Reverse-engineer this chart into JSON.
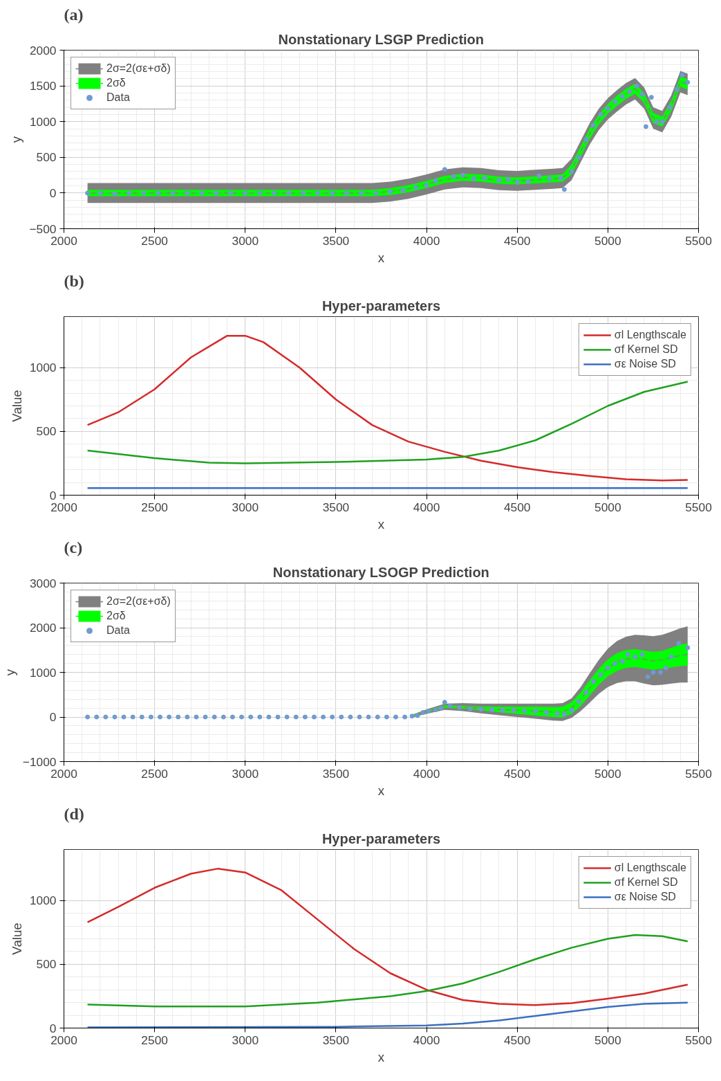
{
  "chart_data": [
    {
      "type": "scatter",
      "title": "Nonstationary LSGP Prediction",
      "xlabel": "x",
      "ylabel": "y",
      "annotations": [
        "(a)"
      ],
      "xlim": [
        2000,
        5500
      ],
      "xticks": [
        2000,
        2500,
        3000,
        3500,
        4000,
        4500,
        5000,
        5500
      ],
      "ylim": [
        -500,
        2000
      ],
      "yticks": [
        -500,
        0,
        500,
        1000,
        1500,
        2000
      ],
      "grid": true,
      "legend": "top left",
      "series": [
        {
          "name": "2σ=2(σε+σδ)",
          "type": "line",
          "color": "#808080",
          "x": [
            2130,
            2300,
            2500,
            2700,
            2900,
            3100,
            3300,
            3500,
            3700,
            3800,
            3900,
            4000,
            4100,
            4200,
            4300,
            4400,
            4500,
            4600,
            4700,
            4750,
            4800,
            4850,
            4900,
            4950,
            5000,
            5050,
            5100,
            5150,
            5200,
            5250,
            5300,
            5350,
            5400,
            5440
          ],
          "values": [
            0,
            0,
            0,
            0,
            0,
            0,
            0,
            0,
            0,
            20,
            60,
            120,
            190,
            220,
            210,
            180,
            170,
            185,
            200,
            210,
            330,
            580,
            830,
            1030,
            1180,
            1290,
            1390,
            1460,
            1330,
            1050,
            1000,
            1220,
            1560,
            1520
          ],
          "lower": [
            -140,
            -140,
            -140,
            -140,
            -140,
            -140,
            -140,
            -140,
            -140,
            -120,
            -80,
            -20,
            50,
            80,
            70,
            40,
            30,
            45,
            60,
            70,
            180,
            430,
            680,
            880,
            1030,
            1140,
            1240,
            1310,
            1180,
            900,
            850,
            1070,
            1410,
            1370
          ],
          "upper": [
            140,
            140,
            140,
            140,
            140,
            140,
            140,
            140,
            140,
            160,
            200,
            260,
            330,
            360,
            350,
            320,
            310,
            325,
            340,
            350,
            480,
            730,
            980,
            1180,
            1330,
            1440,
            1540,
            1610,
            1480,
            1200,
            1150,
            1370,
            1710,
            1670
          ]
        },
        {
          "name": "2σδ",
          "type": "line",
          "color": "#00ff00",
          "line_style": "dashed",
          "x": [
            2130,
            2300,
            2500,
            2700,
            2900,
            3100,
            3300,
            3500,
            3700,
            3800,
            3900,
            4000,
            4100,
            4200,
            4300,
            4400,
            4500,
            4600,
            4700,
            4750,
            4800,
            4850,
            4900,
            4950,
            5000,
            5050,
            5100,
            5150,
            5200,
            5250,
            5300,
            5350,
            5400,
            5440
          ],
          "values": [
            0,
            0,
            0,
            0,
            0,
            0,
            0,
            0,
            0,
            20,
            60,
            120,
            190,
            220,
            210,
            180,
            170,
            185,
            200,
            210,
            330,
            580,
            830,
            1030,
            1180,
            1290,
            1390,
            1460,
            1330,
            1050,
            1000,
            1220,
            1560,
            1520
          ],
          "lower": [
            -45,
            -45,
            -45,
            -45,
            -45,
            -45,
            -45,
            -45,
            -45,
            -30,
            10,
            70,
            140,
            170,
            160,
            130,
            120,
            135,
            150,
            160,
            260,
            510,
            760,
            960,
            1110,
            1220,
            1320,
            1390,
            1260,
            980,
            930,
            1150,
            1490,
            1450
          ],
          "upper": [
            45,
            45,
            45,
            45,
            45,
            45,
            45,
            45,
            45,
            70,
            110,
            170,
            240,
            270,
            260,
            230,
            220,
            235,
            250,
            260,
            400,
            650,
            900,
            1100,
            1250,
            1360,
            1460,
            1530,
            1400,
            1120,
            1070,
            1290,
            1630,
            1590
          ]
        },
        {
          "name": "Data",
          "type": "scatter",
          "color": "#6f9bd1",
          "marker": "circle",
          "x": [
            2130,
            2200,
            2280,
            2360,
            2440,
            2520,
            2600,
            2680,
            2760,
            2840,
            2920,
            3000,
            3080,
            3160,
            3240,
            3320,
            3400,
            3480,
            3560,
            3640,
            3720,
            3800,
            3870,
            3940,
            4000,
            4050,
            4100,
            4150,
            4200,
            4260,
            4320,
            4400,
            4450,
            4500,
            4560,
            4620,
            4680,
            4740,
            4760,
            4800,
            4840,
            4880,
            4920,
            4960,
            5000,
            5040,
            5080,
            5120,
            5160,
            5190,
            5210,
            5240,
            5270,
            5300,
            5340,
            5380,
            5410,
            5440
          ],
          "values": [
            0,
            0,
            -10,
            0,
            0,
            0,
            0,
            0,
            0,
            0,
            0,
            0,
            0,
            0,
            0,
            0,
            0,
            0,
            0,
            0,
            0,
            20,
            40,
            80,
            110,
            170,
            330,
            230,
            250,
            200,
            210,
            180,
            190,
            150,
            160,
            240,
            200,
            210,
            50,
            300,
            500,
            750,
            950,
            1100,
            1180,
            1280,
            1350,
            1420,
            1500,
            1380,
            930,
            1340,
            1000,
            1000,
            1200,
            1450,
            1650,
            1550
          ]
        }
      ]
    },
    {
      "type": "line",
      "title": "Hyper-parameters",
      "xlabel": "x",
      "ylabel": "Value",
      "annotations": [
        "(b)"
      ],
      "xlim": [
        2000,
        5500
      ],
      "xticks": [
        2000,
        2500,
        3000,
        3500,
        4000,
        4500,
        5000,
        5500
      ],
      "ylim": [
        0,
        1400
      ],
      "yticks": [
        0,
        500,
        1000
      ],
      "grid": true,
      "legend": "top right",
      "series": [
        {
          "name": "σl Lengthscale",
          "color": "#d42a2a",
          "x": [
            2130,
            2300,
            2500,
            2700,
            2900,
            3000,
            3100,
            3300,
            3500,
            3700,
            3900,
            4100,
            4300,
            4500,
            4700,
            4900,
            5100,
            5300,
            5440
          ],
          "values": [
            550,
            650,
            830,
            1080,
            1250,
            1250,
            1200,
            1000,
            750,
            550,
            420,
            340,
            270,
            220,
            180,
            150,
            125,
            115,
            120
          ]
        },
        {
          "name": "σf Kernel SD",
          "color": "#1fa01f",
          "x": [
            2130,
            2500,
            2800,
            3000,
            3500,
            4000,
            4200,
            4400,
            4600,
            4800,
            5000,
            5200,
            5440
          ],
          "values": [
            350,
            290,
            255,
            250,
            260,
            280,
            300,
            350,
            430,
            560,
            700,
            810,
            890
          ]
        },
        {
          "name": "σε Noise SD",
          "color": "#3a6fbf",
          "x": [
            2130,
            5440
          ],
          "values": [
            55,
            55
          ]
        }
      ]
    },
    {
      "type": "scatter",
      "title": "Nonstationary LSOGP Prediction",
      "xlabel": "x",
      "ylabel": "y",
      "annotations": [
        "(c)"
      ],
      "xlim": [
        2000,
        5500
      ],
      "xticks": [
        2000,
        2500,
        3000,
        3500,
        4000,
        4500,
        5000,
        5500
      ],
      "ylim": [
        -1000,
        3000
      ],
      "yticks": [
        -1000,
        0,
        1000,
        2000,
        3000
      ],
      "grid": true,
      "legend": "top left",
      "series": [
        {
          "name": "2σ=2(σε+σδ)",
          "type": "line",
          "color": "#808080",
          "x": [
            3920,
            4000,
            4100,
            4200,
            4300,
            4400,
            4500,
            4600,
            4700,
            4750,
            4800,
            4850,
            4900,
            4950,
            5000,
            5050,
            5100,
            5150,
            5200,
            5250,
            5300,
            5350,
            5400,
            5440
          ],
          "values": [
            20,
            120,
            230,
            220,
            190,
            170,
            150,
            130,
            110,
            110,
            200,
            400,
            650,
            900,
            1100,
            1230,
            1300,
            1320,
            1290,
            1260,
            1280,
            1330,
            1380,
            1400
          ],
          "lower": [
            -10,
            70,
            160,
            130,
            80,
            40,
            0,
            -40,
            -80,
            -90,
            -20,
            130,
            320,
            520,
            670,
            760,
            800,
            800,
            750,
            710,
            720,
            750,
            770,
            770
          ],
          "upper": [
            50,
            170,
            300,
            310,
            300,
            300,
            300,
            300,
            300,
            310,
            420,
            670,
            980,
            1280,
            1530,
            1700,
            1800,
            1840,
            1830,
            1810,
            1840,
            1910,
            1990,
            2030
          ]
        },
        {
          "name": "2σδ",
          "type": "line",
          "color": "#00ff00",
          "line_style": "dashed",
          "x": [
            3920,
            4000,
            4100,
            4200,
            4300,
            4400,
            4500,
            4600,
            4700,
            4750,
            4800,
            4850,
            4900,
            4950,
            5000,
            5050,
            5100,
            5150,
            5200,
            5250,
            5300,
            5350,
            5400,
            5440
          ],
          "values": [
            20,
            120,
            230,
            220,
            190,
            170,
            150,
            130,
            110,
            110,
            200,
            400,
            650,
            900,
            1100,
            1230,
            1300,
            1320,
            1290,
            1260,
            1280,
            1330,
            1380,
            1400
          ],
          "lower": [
            10,
            100,
            200,
            190,
            150,
            110,
            70,
            30,
            0,
            -10,
            70,
            250,
            480,
            720,
            910,
            1030,
            1100,
            1120,
            1090,
            1060,
            1080,
            1110,
            1140,
            1150
          ],
          "upper": [
            30,
            140,
            260,
            250,
            230,
            230,
            230,
            230,
            220,
            230,
            330,
            550,
            820,
            1080,
            1290,
            1430,
            1500,
            1520,
            1490,
            1460,
            1480,
            1550,
            1620,
            1650
          ]
        },
        {
          "name": "Data",
          "type": "scatter",
          "color": "#6f9bd1",
          "marker": "circle",
          "x": [
            2130,
            2180,
            2230,
            2280,
            2330,
            2380,
            2430,
            2480,
            2530,
            2580,
            2630,
            2680,
            2730,
            2780,
            2830,
            2880,
            2930,
            2980,
            3030,
            3080,
            3130,
            3180,
            3230,
            3280,
            3330,
            3380,
            3430,
            3480,
            3530,
            3580,
            3630,
            3680,
            3730,
            3780,
            3830,
            3880,
            3920,
            3950,
            3980,
            4010,
            4050,
            4080,
            4100,
            4130,
            4180,
            4240,
            4300,
            4360,
            4420,
            4480,
            4540,
            4600,
            4660,
            4720,
            4760,
            4800,
            4840,
            4880,
            4920,
            4960,
            5000,
            5040,
            5080,
            5110,
            5150,
            5190,
            5220,
            5250,
            5290,
            5320,
            5350,
            5390,
            5440
          ],
          "values": [
            0,
            0,
            0,
            0,
            0,
            0,
            0,
            0,
            0,
            0,
            0,
            0,
            0,
            0,
            0,
            0,
            0,
            0,
            0,
            0,
            0,
            0,
            0,
            0,
            0,
            0,
            0,
            0,
            0,
            0,
            0,
            0,
            0,
            0,
            0,
            0,
            20,
            30,
            100,
            130,
            160,
            200,
            330,
            250,
            210,
            180,
            170,
            160,
            150,
            150,
            140,
            130,
            100,
            80,
            60,
            150,
            350,
            550,
            800,
            950,
            1100,
            1200,
            1250,
            1400,
            1350,
            1400,
            900,
            1000,
            1000,
            1100,
            1350,
            1650,
            1550
          ]
        }
      ]
    },
    {
      "type": "line",
      "title": "Hyper-parameters",
      "xlabel": "x",
      "ylabel": "Value",
      "annotations": [
        "(d)"
      ],
      "xlim": [
        2000,
        5500
      ],
      "xticks": [
        2000,
        2500,
        3000,
        3500,
        4000,
        4500,
        5000,
        5500
      ],
      "ylim": [
        0,
        1400
      ],
      "yticks": [
        0,
        500,
        1000
      ],
      "grid": true,
      "legend": "top right",
      "series": [
        {
          "name": "σl Lengthscale",
          "color": "#d42a2a",
          "x": [
            2130,
            2300,
            2500,
            2700,
            2850,
            3000,
            3200,
            3400,
            3600,
            3800,
            4000,
            4200,
            4400,
            4600,
            4800,
            5000,
            5200,
            5440
          ],
          "values": [
            830,
            950,
            1100,
            1210,
            1250,
            1220,
            1080,
            850,
            620,
            430,
            300,
            220,
            190,
            180,
            195,
            230,
            270,
            340
          ]
        },
        {
          "name": "σf Kernel SD",
          "color": "#1fa01f",
          "x": [
            2130,
            2500,
            3000,
            3400,
            3800,
            4000,
            4200,
            4400,
            4600,
            4800,
            5000,
            5150,
            5300,
            5440
          ],
          "values": [
            185,
            170,
            170,
            200,
            250,
            290,
            350,
            440,
            540,
            630,
            700,
            730,
            720,
            680
          ]
        },
        {
          "name": "σε Noise SD",
          "color": "#3a6fbf",
          "x": [
            2130,
            3500,
            4000,
            4200,
            4400,
            4600,
            4800,
            5000,
            5200,
            5440
          ],
          "values": [
            5,
            10,
            20,
            35,
            60,
            95,
            130,
            165,
            190,
            200
          ]
        }
      ]
    }
  ]
}
